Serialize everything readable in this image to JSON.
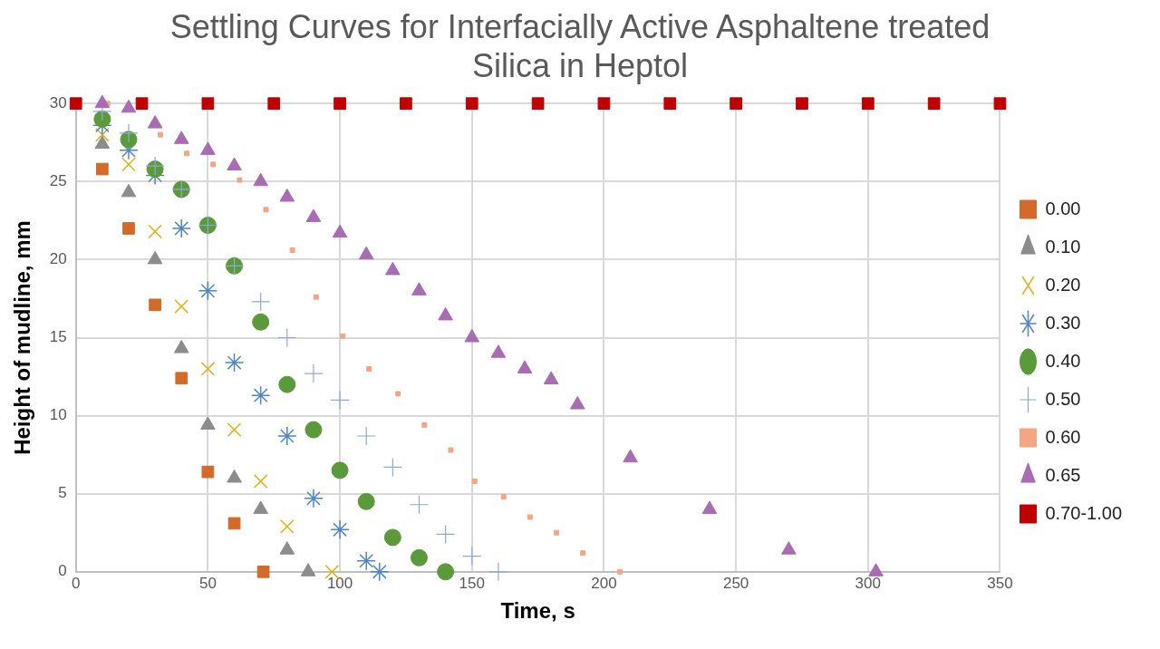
{
  "chart_data": {
    "type": "scatter",
    "title": "Settling Curves for Interfacially Active Asphaltene treated Silica in Heptol",
    "xlabel": "Time, s",
    "ylabel": "Height of mudline, mm",
    "xlim": [
      0,
      350
    ],
    "xticks": [
      0,
      50,
      100,
      150,
      200,
      250,
      300,
      350
    ],
    "ylim": [
      0,
      30
    ],
    "yticks": [
      0,
      5,
      10,
      15,
      20,
      25,
      30
    ],
    "grid": true,
    "legend": "right",
    "series": [
      {
        "name": "0.00",
        "color": "#d26a2a",
        "marker": "square",
        "x": [
          10,
          20,
          30,
          40,
          50,
          60,
          71
        ],
        "values": [
          25.8,
          22,
          17.1,
          12.4,
          6.4,
          3.1,
          0
        ]
      },
      {
        "name": "0.10",
        "color": "#8c8c8c",
        "marker": "triangle",
        "x": [
          10,
          20,
          30,
          40,
          50,
          60,
          70,
          80,
          88
        ],
        "values": [
          27.4,
          24.3,
          20,
          14.3,
          9.4,
          6,
          4,
          1.4,
          0
        ]
      },
      {
        "name": "0.20",
        "color": "#e6b012",
        "marker": "x",
        "x": [
          10,
          20,
          30,
          40,
          50,
          60,
          70,
          80,
          97
        ],
        "values": [
          28,
          26.1,
          21.8,
          17,
          13,
          9.1,
          5.8,
          2.9,
          0
        ]
      },
      {
        "name": "0.30",
        "color": "#4f86c6",
        "marker": "cross",
        "x": [
          10,
          20,
          30,
          40,
          50,
          60,
          70,
          80,
          90,
          100,
          110,
          115
        ],
        "values": [
          28.6,
          27,
          25.4,
          22,
          18,
          13.4,
          11.3,
          8.7,
          4.7,
          2.7,
          0.7,
          0
        ]
      },
      {
        "name": "0.40",
        "color": "#5b9a3a",
        "marker": "circle",
        "x": [
          10,
          20,
          30,
          40,
          50,
          60,
          70,
          80,
          90,
          100,
          110,
          120,
          130,
          140
        ],
        "values": [
          29,
          27.7,
          25.8,
          24.5,
          22.2,
          19.6,
          16,
          12,
          9.1,
          6.5,
          4.5,
          2.2,
          0.9,
          0
        ]
      },
      {
        "name": "0.50",
        "color": "#8fa8dc",
        "marker": "plus",
        "x": [
          10,
          20,
          30,
          40,
          50,
          60,
          70,
          80,
          90,
          100,
          110,
          120,
          130,
          140,
          150,
          160
        ],
        "values": [
          29.5,
          28.1,
          26,
          24.5,
          22.2,
          19.6,
          17.3,
          15,
          12.7,
          11,
          8.7,
          6.7,
          4.3,
          2.4,
          1,
          0
        ]
      },
      {
        "name": "0.60",
        "color": "#f4a583",
        "x": [
          12,
          32,
          42,
          52,
          62,
          72,
          82,
          91,
          101,
          111,
          122,
          132,
          142,
          151,
          162,
          172,
          182,
          192,
          206
        ],
        "values": [
          30,
          28,
          26.8,
          26.1,
          25.1,
          23.2,
          20.6,
          17.6,
          15.1,
          13,
          11.4,
          9.4,
          7.8,
          5.8,
          4.8,
          3.5,
          2.5,
          1.2,
          0
        ]
      },
      {
        "name": "0.65",
        "color": "#a86cb3",
        "marker": "triangle",
        "x": [
          10,
          20,
          30,
          40,
          50,
          60,
          70,
          80,
          90,
          100,
          110,
          120,
          130,
          140,
          150,
          160,
          170,
          180,
          190,
          210,
          240,
          270,
          303
        ],
        "values": [
          30,
          29.7,
          28.7,
          27.7,
          27,
          26,
          25,
          24,
          22.7,
          21.7,
          20.3,
          19.3,
          18,
          16.4,
          15,
          14,
          13,
          12.3,
          10.7,
          7.3,
          4,
          1.4,
          0
        ]
      },
      {
        "name": "0.70-1.00",
        "color": "#c00000",
        "marker": "square",
        "x": [
          0,
          25,
          50,
          75,
          100,
          125,
          150,
          175,
          200,
          225,
          250,
          275,
          300,
          325,
          350
        ],
        "values": [
          30,
          30,
          30,
          30,
          30,
          30,
          30,
          30,
          30,
          30,
          30,
          30,
          30,
          30,
          30
        ]
      }
    ]
  }
}
